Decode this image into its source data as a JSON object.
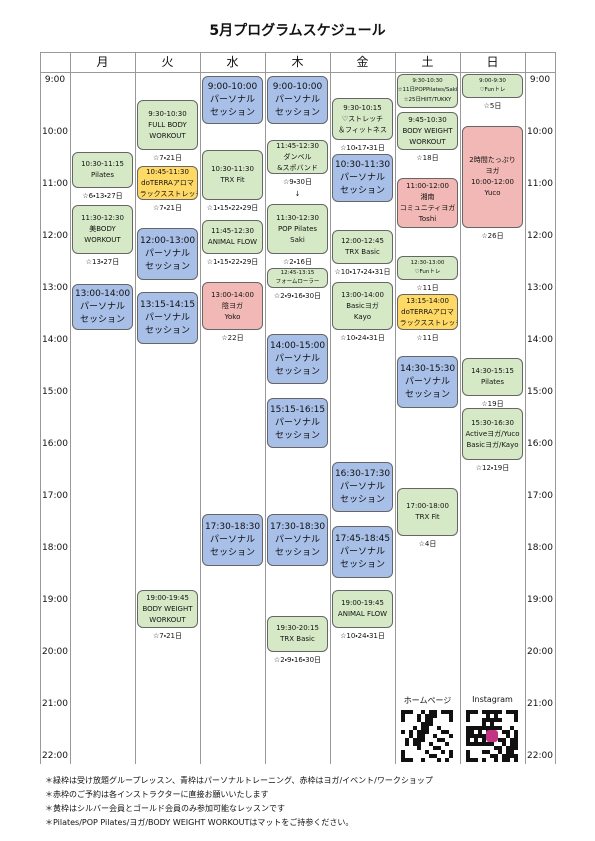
{
  "title": "5月プログラムスケジュール",
  "times": [
    "9:00",
    "10:00",
    "11:00",
    "12:00",
    "13:00",
    "14:00",
    "15:00",
    "16:00",
    "17:00",
    "18:00",
    "19:00",
    "20:00",
    "21:00",
    "22:00"
  ],
  "columns": [
    {
      "day": "月",
      "events": [
        {
          "lines": [
            "10:30-11:15",
            "Pilates"
          ],
          "note": "☆6・13・27日",
          "color": "#d6e9c6"
        },
        {
          "lines": [
            "11:30-12:30",
            "美BODY",
            "WORKOUT"
          ],
          "note": "☆13・27日",
          "color": "#d6e9c6"
        },
        {
          "lines": [
            "13:00-14:00",
            "パーソナル",
            "セッション"
          ],
          "color": "#a8bfe8"
        }
      ]
    },
    {
      "day": "火",
      "events": [
        {
          "lines": [
            "9:30-10:30",
            "FULL BODY",
            "WORKOUT"
          ],
          "note": "☆7・21日",
          "color": "#d6e9c6"
        },
        {
          "lines": [
            "10:45-11:30",
            "doTERRAアロマ",
            "リラックスストレッチ"
          ],
          "note": "☆7・21日",
          "color": "#ffd966"
        },
        {
          "lines": [
            "12:00-13:00",
            "パーソナル",
            "セッション"
          ],
          "color": "#a8bfe8"
        },
        {
          "lines": [
            "13:15-14:15",
            "パーソナル",
            "セッション"
          ],
          "color": "#a8bfe8"
        },
        {
          "lines": [
            "19:00-19:45",
            "BODY WEIGHT",
            "WORKOUT"
          ],
          "note": "☆7・21日",
          "color": "#d6e9c6"
        }
      ]
    },
    {
      "day": "水",
      "events": [
        {
          "lines": [
            "9:00-10:00",
            "パーソナル",
            "セッション"
          ],
          "color": "#a8bfe8"
        },
        {
          "lines": [
            "10:30-11:30",
            "TRX Fit"
          ],
          "note": "☆1・15・22・29日",
          "color": "#d6e9c6"
        },
        {
          "lines": [
            "11:45-12:30",
            "ANIMAL FLOW"
          ],
          "note": "☆1・15・22・29日",
          "color": "#d6e9c6"
        },
        {
          "lines": [
            "13:00-14:00",
            "陰ヨガ",
            "Yoko"
          ],
          "note": "☆22日",
          "color": "#f2b8b5"
        },
        {
          "lines": [
            "17:30-18:30",
            "パーソナル",
            "セッション"
          ],
          "color": "#a8bfe8"
        }
      ]
    },
    {
      "day": "木",
      "events": [
        {
          "lines": [
            "9:00-10:00",
            "パーソナル",
            "セッション"
          ],
          "color": "#a8bfe8"
        },
        {
          "lines": [
            "11:45-12:30",
            "ダンベル",
            "&スポバンド"
          ],
          "note": "☆9・30日",
          "mark": "↓",
          "color": "#d6e9c6"
        },
        {
          "lines": [
            "11:30-12:30",
            "POP Pilates",
            "Saki"
          ],
          "note": "☆2・16日",
          "color": "#d6e9c6"
        },
        {
          "lines": [
            "12:45-13:15",
            "フォームローラー"
          ],
          "note": "☆2・9・16・30日",
          "color": "#d6e9c6"
        },
        {
          "lines": [
            "14:00-15:00",
            "パーソナル",
            "セッション"
          ],
          "color": "#a8bfe8"
        },
        {
          "lines": [
            "15:15-16:15",
            "パーソナル",
            "セッション"
          ],
          "color": "#a8bfe8"
        },
        {
          "lines": [
            "17:30-18:30",
            "パーソナル",
            "セッション"
          ],
          "color": "#a8bfe8"
        },
        {
          "lines": [
            "19:30-20:15",
            "TRX Basic"
          ],
          "note": "☆2・9・16・30日",
          "color": "#d6e9c6"
        }
      ]
    },
    {
      "day": "金",
      "events": [
        {
          "lines": [
            "9:30-10:15",
            "♡ストレッチ",
            "＆フィットネス"
          ],
          "note": "☆10・17・31日",
          "color": "#d6e9c6"
        },
        {
          "lines": [
            "10:30-11:30",
            "パーソナル",
            "セッション"
          ],
          "color": "#a8bfe8"
        },
        {
          "lines": [
            "12:00-12:45",
            "TRX Basic"
          ],
          "note": "☆10・17・24・31日",
          "color": "#d6e9c6"
        },
        {
          "lines": [
            "13:00-14:00",
            "Basicヨガ",
            "Kayo"
          ],
          "note": "☆10・24・31日",
          "color": "#d6e9c6"
        },
        {
          "lines": [
            "16:30-17:30",
            "パーソナル",
            "セッション"
          ],
          "color": "#a8bfe8"
        },
        {
          "lines": [
            "17:45-18:45",
            "パーソナル",
            "セッション"
          ],
          "color": "#a8bfe8"
        },
        {
          "lines": [
            "19:00-19:45",
            "ANIMAL FLOW"
          ],
          "note": "☆10・24・31日",
          "color": "#d6e9c6"
        }
      ]
    },
    {
      "day": "土",
      "events": [
        {
          "lines": [
            "9:30-10:30",
            "☆11日POPPilates/Saki",
            "☆25日HIIT/TUKKY"
          ],
          "color": "#d6e9c6"
        },
        {
          "lines": [
            "9:45-10:30",
            "BODY WEIGHT",
            "WORKOUT"
          ],
          "note": "☆18日",
          "color": "#d6e9c6"
        },
        {
          "lines": [
            "11:00-12:00",
            "湘南",
            "コミュニティヨガ",
            "Toshi"
          ],
          "color": "#f2b8b5"
        },
        {
          "lines": [
            "12:30-13:00",
            "♡Funトレ"
          ],
          "note": "☆11日",
          "color": "#d6e9c6"
        },
        {
          "lines": [
            "13:15-14:00",
            "doTERRAアロマ",
            "リラックスストレッチ"
          ],
          "note": "☆11日",
          "color": "#ffd966"
        },
        {
          "lines": [
            "14:30-15:30",
            "パーソナル",
            "セッション"
          ],
          "color": "#a8bfe8"
        },
        {
          "lines": [
            "17:00-18:00",
            "TRX Fit"
          ],
          "note": "☆4日",
          "color": "#d6e9c6"
        }
      ]
    },
    {
      "day": "日",
      "events": [
        {
          "lines": [
            "9:00-9:30",
            "♡Funトレ"
          ],
          "note": "☆5日",
          "color": "#d6e9c6"
        },
        {
          "lines": [
            "2時間たっぷり",
            "ヨガ",
            "10:00-12:00",
            "Yuco"
          ],
          "note": "☆26日",
          "color": "#f2b8b5"
        },
        {
          "lines": [
            "14:30-15:15",
            "Pilates"
          ],
          "note": "☆19日",
          "color": "#d6e9c6"
        },
        {
          "lines": [
            "15:30-16:30",
            "Activeヨガ/Yuco",
            "Basicヨガ/Kayo"
          ],
          "note": "☆12・19日",
          "color": "#d6e9c6"
        }
      ]
    }
  ],
  "qr": [
    "ホームページ",
    "Instagram"
  ],
  "notes": [
    "＊緑枠は受け放題グループレッスン、青枠はパーソナルトレーニング、赤枠はヨガ/イベント/ワークショップ",
    "＊赤枠のご予約は各インストラクターに直接お願いいたします",
    "＊黄枠はシルバー会員とゴールド会員のみ参加可能なレッスンです",
    "＊Pilates/POP Pilates/ヨガ/BODY WEIGHT WORKOUTはマットをご持参ください。"
  ]
}
